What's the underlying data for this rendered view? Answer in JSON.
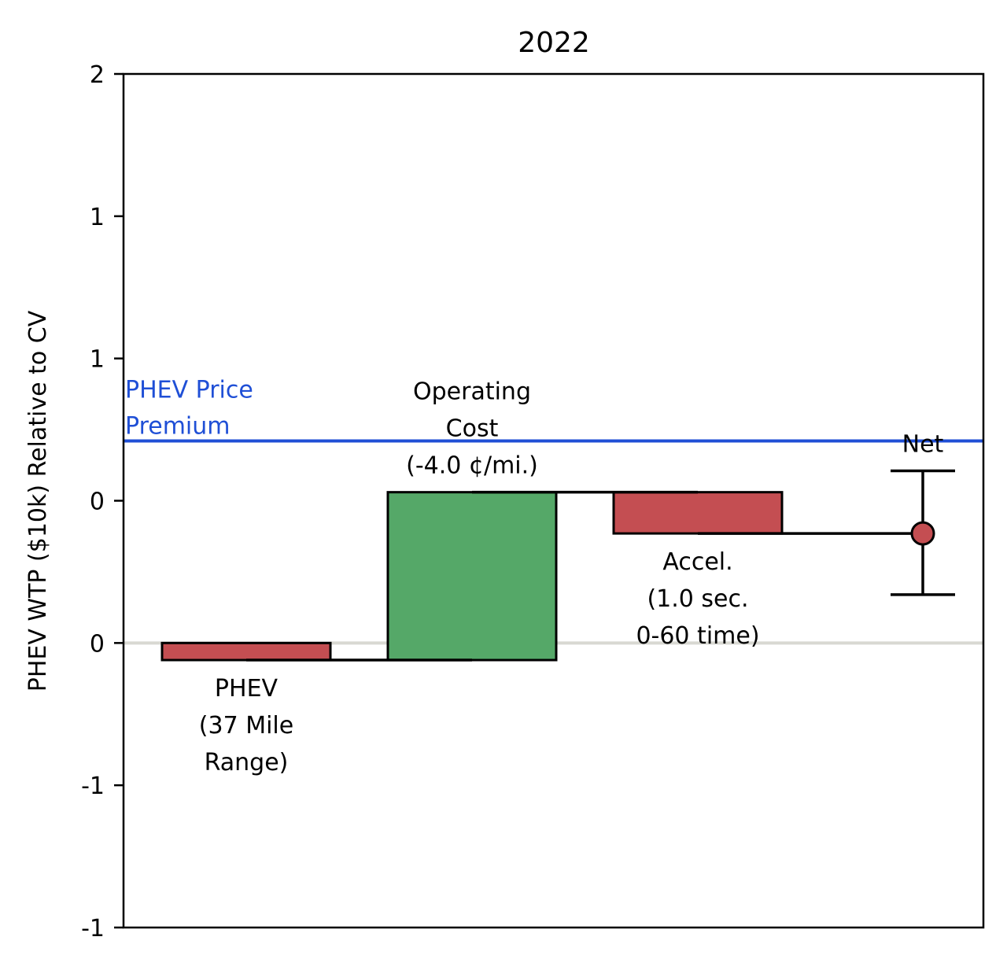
{
  "chart_data": {
    "type": "waterfall",
    "title": "2022",
    "ylabel": "PHEV WTP ($10k) Relative to CV",
    "xlabel": "",
    "ylim": [
      -1.0,
      2.0
    ],
    "yticks": [
      -1.0,
      -0.5,
      0.0,
      0.5,
      1.0,
      1.5,
      2.0
    ],
    "ytick_labels": [
      "-1",
      "-1",
      "0",
      "0",
      "1",
      "1",
      "2"
    ],
    "grid": false,
    "steps": [
      {
        "label_lines": [
          "PHEV",
          "(37 Mile",
          "Range)"
        ],
        "start": 0.0,
        "end": -0.06,
        "color": "#c44e52",
        "label_position": "below"
      },
      {
        "label_lines": [
          "Operating",
          "Cost",
          "(-4.0 ¢/mi.)"
        ],
        "start": -0.06,
        "end": 0.53,
        "color": "#55a868",
        "label_position": "above"
      },
      {
        "label_lines": [
          "Accel.",
          "(1.0 sec.",
          "0-60 time)"
        ],
        "start": 0.53,
        "end": 0.385,
        "color": "#c44e52",
        "label_position": "below"
      }
    ],
    "net": {
      "label": "Net",
      "value": 0.385,
      "err_low": 0.17,
      "err_high": 0.605,
      "color": "#c44e52"
    },
    "reference_line": {
      "value": 0.71,
      "label_lines": [
        "PHEV Price",
        "Premium"
      ],
      "color": "#1f4fd6"
    },
    "zero_line_color": "#d8d8d2"
  }
}
